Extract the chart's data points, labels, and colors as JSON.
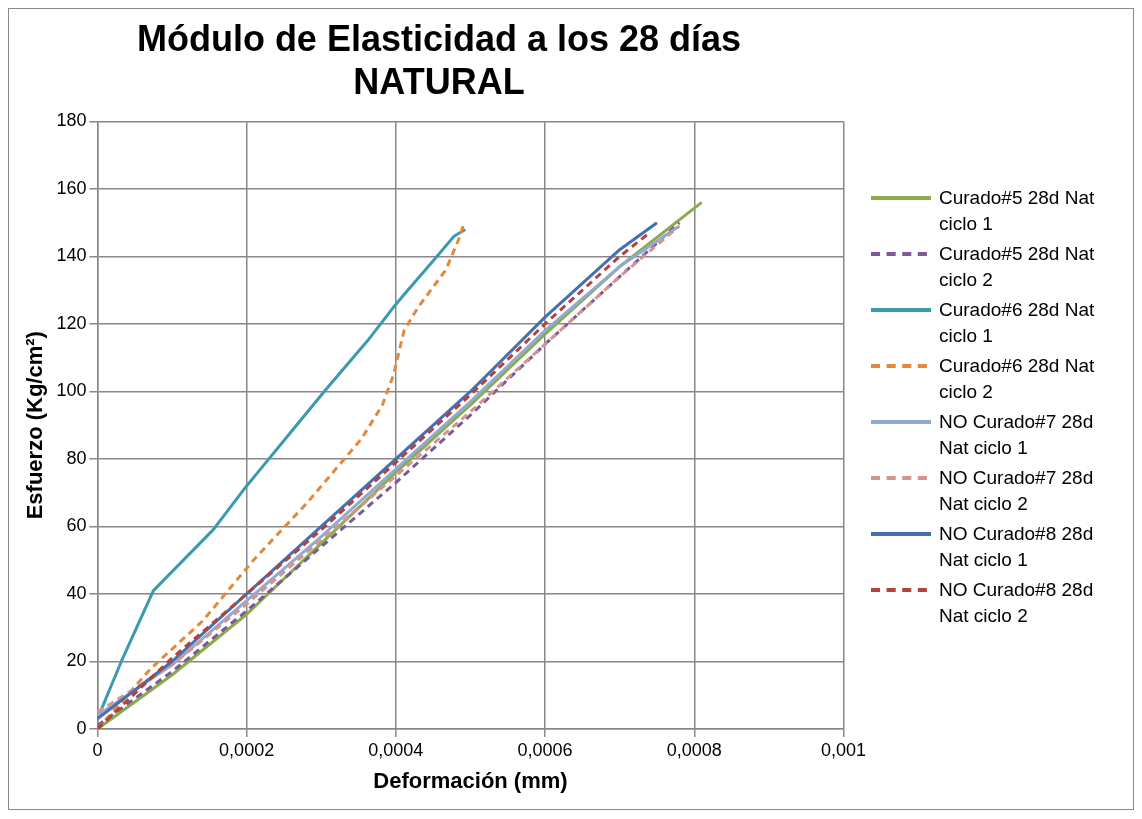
{
  "chart_data": {
    "type": "line",
    "title": "Módulo de Elasticidad a los 28 días\nNATURAL",
    "xlabel": "Deformación (mm)",
    "ylabel": "Esfuerzo (Kg/cm²)",
    "xlim": [
      0,
      0.001
    ],
    "xticks": [
      {
        "value": 0,
        "label": "0"
      },
      {
        "value": 0.0002,
        "label": "0,0002"
      },
      {
        "value": 0.0004,
        "label": "0,0004"
      },
      {
        "value": 0.0006,
        "label": "0,0006"
      },
      {
        "value": 0.0008,
        "label": "0,0008"
      },
      {
        "value": 0.001,
        "label": "0,001"
      }
    ],
    "ylim": [
      0,
      180
    ],
    "yticks": [
      0,
      20,
      40,
      60,
      80,
      100,
      120,
      140,
      160,
      180
    ],
    "grid": true,
    "legend": "right",
    "marker": "none",
    "series": [
      {
        "name": "Curado#5 28d  Nat ciclo 1",
        "color": "#8aac4a",
        "line_style": "solid",
        "x": [
          0,
          0.0001,
          0.0002,
          0.0003,
          0.0004,
          0.0005,
          0.0006,
          0.0007,
          0.00081
        ],
        "values": [
          0,
          16,
          34,
          55,
          76,
          96,
          117,
          137,
          156
        ]
      },
      {
        "name": "Curado#5 28d Nat ciclo 2",
        "color": "#7a5a9a",
        "line_style": "dashed",
        "x": [
          0,
          0.0001,
          0.0002,
          0.0003,
          0.0004,
          0.0005,
          0.0006,
          0.0007,
          0.00078
        ],
        "values": [
          1,
          17,
          35,
          54,
          73,
          93,
          114,
          134,
          150
        ]
      },
      {
        "name": "Curado#6 28d  Nat ciclo 1",
        "color": "#3a9ab0",
        "line_style": "solid",
        "x": [
          0,
          3.2e-05,
          7.5e-05,
          0.000155,
          0.0002,
          0.000252,
          0.000304,
          0.000362,
          0.000397,
          0.000416,
          0.000455,
          0.000478,
          0.000493
        ],
        "values": [
          3,
          20,
          41,
          59,
          72,
          86,
          100,
          115,
          125,
          130,
          140,
          146,
          148
        ]
      },
      {
        "name": "Curado#6 28d Nat ciclo 2",
        "color": "#e3893a",
        "line_style": "dashed",
        "x": [
          0,
          7.2e-05,
          0.000141,
          0.000209,
          0.000281,
          0.000354,
          0.000382,
          0.000397,
          0.000411,
          0.00043,
          0.000467,
          0.000486,
          0.00049
        ],
        "values": [
          0,
          18,
          32,
          50,
          67,
          86,
          96,
          105,
          118,
          125,
          136,
          146,
          149
        ]
      },
      {
        "name": "NO Curado#7 28d Nat ciclo 1",
        "color": "#90aad2",
        "line_style": "solid",
        "x": [
          0,
          0.0001,
          0.0002,
          0.0003,
          0.0004,
          0.0005,
          0.0006,
          0.0007,
          0.00078
        ],
        "values": [
          4,
          19,
          38,
          57,
          77,
          97,
          118,
          137,
          149
        ]
      },
      {
        "name": "NO Curado#7 28d Nat ciclo 2",
        "color": "#d69490",
        "line_style": "dashed",
        "x": [
          0,
          0.0001,
          0.0002,
          0.0003,
          0.0004,
          0.0005,
          0.0006,
          0.0007,
          0.00078
        ],
        "values": [
          5,
          19,
          37,
          56,
          75,
          94,
          114,
          134,
          149
        ]
      },
      {
        "name": "NO Curado#8 28d Nat ciclo 1",
        "color": "#4570b0",
        "line_style": "solid",
        "x": [
          0,
          0.0001,
          0.0002,
          0.0003,
          0.0004,
          0.0005,
          0.0006,
          0.0007,
          0.00075
        ],
        "values": [
          3,
          20,
          40,
          60,
          80,
          100,
          122,
          142,
          150
        ]
      },
      {
        "name": "NO Curado#8 28d Nat ciclo 2",
        "color": "#b5413d",
        "line_style": "dashed",
        "x": [
          0,
          0.0001,
          0.0002,
          0.0003,
          0.0004,
          0.0005,
          0.0006,
          0.0007,
          0.00074
        ],
        "values": [
          0,
          21,
          40,
          59,
          79,
          99,
          120,
          140,
          147
        ]
      }
    ]
  }
}
